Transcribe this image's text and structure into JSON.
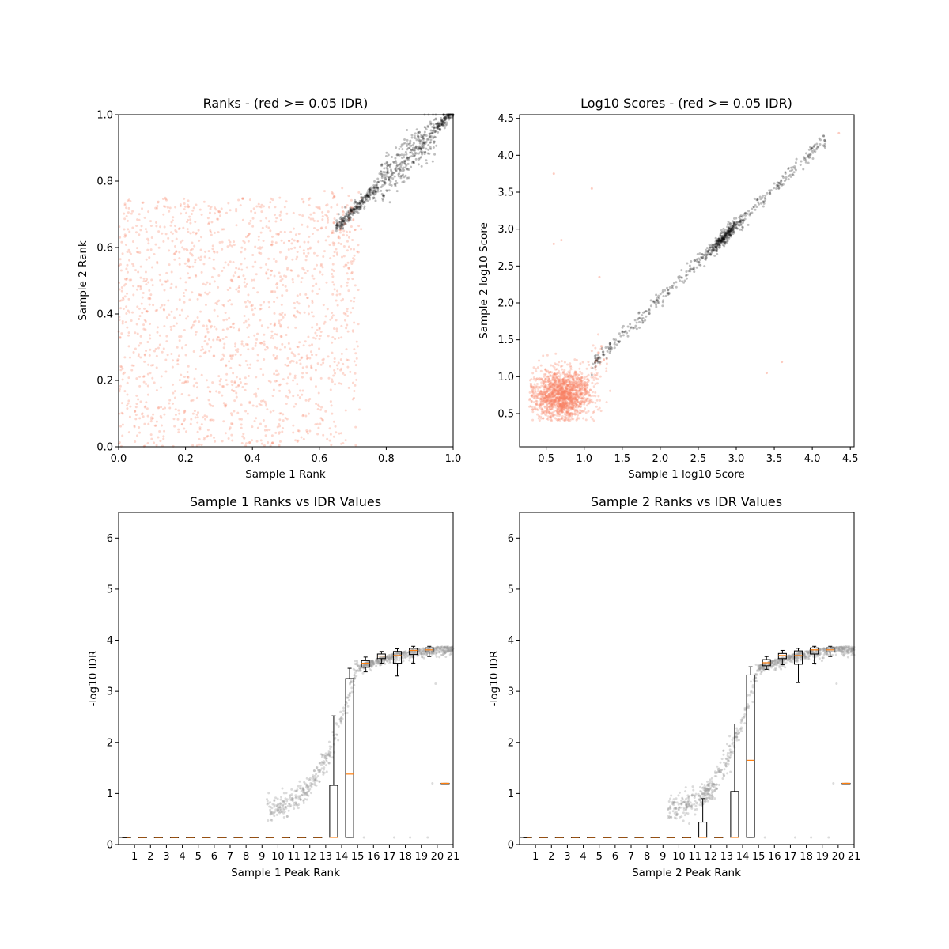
{
  "chart_data": [
    {
      "type": "scatter",
      "title": "Ranks - (red >= 0.05 IDR)",
      "xlabel": "Sample 1 Rank",
      "ylabel": "Sample 2 Rank",
      "xlim": [
        0.0,
        1.0
      ],
      "ylim": [
        0.0,
        1.0
      ],
      "xticks": [
        "0.0",
        "0.2",
        "0.4",
        "0.6",
        "0.8",
        "1.0"
      ],
      "yticks": [
        "0.0",
        "0.2",
        "0.4",
        "0.6",
        "0.8",
        "1.0"
      ],
      "grid": false,
      "point_groups": [
        {
          "color": "#fa8064",
          "description": "low reproducibility (IDR >= 0.05)",
          "distribution": "uniform scatter over [0,0.72] x [0,0.75]",
          "approx_count": 1600
        },
        {
          "color": "#000000",
          "description": "reproducible peaks",
          "distribution": "diagonal band from (0.65,0.66) to (1.0,1.0)",
          "approx_count": 700
        }
      ]
    },
    {
      "type": "scatter",
      "title": "Log10 Scores - (red >= 0.05 IDR)",
      "xlabel": "Sample 1 log10 Score",
      "ylabel": "Sample 2 log10 Score",
      "xlim": [
        0.15,
        4.55
      ],
      "ylim": [
        0.05,
        4.55
      ],
      "xticks": [
        "0.5",
        "1.0",
        "1.5",
        "2.0",
        "2.5",
        "3.0",
        "3.5",
        "4.0",
        "4.5"
      ],
      "yticks": [
        "0.5",
        "1.0",
        "1.5",
        "2.0",
        "2.5",
        "3.0",
        "3.5",
        "4.0",
        "4.5"
      ],
      "grid": false,
      "point_groups": [
        {
          "color": "#fa8064",
          "description": "low reproducibility cluster",
          "center": [
            0.7,
            0.75
          ],
          "approx_count": 1500
        },
        {
          "color": "#000000",
          "description": "reproducible peaks along diagonal",
          "x_range": [
            1.1,
            4.2
          ],
          "dense_center": [
            2.85,
            2.9
          ],
          "approx_count": 650
        }
      ]
    },
    {
      "type": "box",
      "title": "Sample 1 Ranks vs IDR Values",
      "xlabel": "Sample 1 Peak Rank",
      "ylabel": "-log10 IDR",
      "ylim": [
        0,
        6.5
      ],
      "yticks": [
        "0",
        "1",
        "2",
        "3",
        "4",
        "5",
        "6"
      ],
      "categories": [
        "1",
        "2",
        "3",
        "4",
        "5",
        "6",
        "7",
        "8",
        "9",
        "10",
        "11",
        "12",
        "13",
        "14",
        "15",
        "16",
        "17",
        "18",
        "19",
        "20",
        "21"
      ],
      "boxes": [
        {
          "whislo": 0.14,
          "q1": 0.14,
          "med": 0.14,
          "q3": 0.14,
          "whishi": 0.14
        },
        {
          "whislo": 0.14,
          "q1": 0.14,
          "med": 0.14,
          "q3": 0.14,
          "whishi": 0.14
        },
        {
          "whislo": 0.14,
          "q1": 0.14,
          "med": 0.14,
          "q3": 0.14,
          "whishi": 0.14
        },
        {
          "whislo": 0.14,
          "q1": 0.14,
          "med": 0.14,
          "q3": 0.14,
          "whishi": 0.14
        },
        {
          "whislo": 0.14,
          "q1": 0.14,
          "med": 0.14,
          "q3": 0.14,
          "whishi": 0.14
        },
        {
          "whislo": 0.14,
          "q1": 0.14,
          "med": 0.14,
          "q3": 0.14,
          "whishi": 0.14
        },
        {
          "whislo": 0.14,
          "q1": 0.14,
          "med": 0.14,
          "q3": 0.14,
          "whishi": 0.14
        },
        {
          "whislo": 0.14,
          "q1": 0.14,
          "med": 0.14,
          "q3": 0.14,
          "whishi": 0.14
        },
        {
          "whislo": 0.14,
          "q1": 0.14,
          "med": 0.14,
          "q3": 0.14,
          "whishi": 0.14
        },
        {
          "whislo": 0.14,
          "q1": 0.14,
          "med": 0.14,
          "q3": 0.14,
          "whishi": 0.14
        },
        {
          "whislo": 0.14,
          "q1": 0.14,
          "med": 0.14,
          "q3": 0.14,
          "whishi": 0.14
        },
        {
          "whislo": 0.14,
          "q1": 0.14,
          "med": 0.14,
          "q3": 0.14,
          "whishi": 0.14
        },
        {
          "whislo": 0.14,
          "q1": 0.14,
          "med": 0.14,
          "q3": 0.14,
          "whishi": 0.14
        },
        {
          "whislo": 0.14,
          "q1": 0.14,
          "med": 0.14,
          "q3": 1.16,
          "whishi": 2.52
        },
        {
          "whislo": 0.14,
          "q1": 0.14,
          "med": 1.38,
          "q3": 3.25,
          "whishi": 3.45
        },
        {
          "whislo": 3.38,
          "q1": 3.47,
          "med": 3.55,
          "q3": 3.6,
          "whishi": 3.67
        },
        {
          "whislo": 3.55,
          "q1": 3.64,
          "med": 3.69,
          "q3": 3.73,
          "whishi": 3.78
        },
        {
          "whislo": 3.3,
          "q1": 3.55,
          "med": 3.7,
          "q3": 3.78,
          "whishi": 3.83
        },
        {
          "whislo": 3.55,
          "q1": 3.72,
          "med": 3.8,
          "q3": 3.84,
          "whishi": 3.88
        },
        {
          "whislo": 3.68,
          "q1": 3.77,
          "med": 3.81,
          "q3": 3.85,
          "whishi": 3.88
        },
        {
          "whislo": 1.2,
          "q1": 1.2,
          "med": 1.2,
          "q3": 1.2,
          "whishi": 1.2
        }
      ]
    },
    {
      "type": "box",
      "title": "Sample 2 Ranks vs IDR Values",
      "xlabel": "Sample 2 Peak Rank",
      "ylabel": "-log10 IDR",
      "ylim": [
        0,
        6.5
      ],
      "yticks": [
        "0",
        "1",
        "2",
        "3",
        "4",
        "5",
        "6"
      ],
      "categories": [
        "1",
        "2",
        "3",
        "4",
        "5",
        "6",
        "7",
        "8",
        "9",
        "10",
        "11",
        "12",
        "13",
        "14",
        "15",
        "16",
        "17",
        "18",
        "19",
        "20",
        "21"
      ],
      "boxes": [
        {
          "whislo": 0.14,
          "q1": 0.14,
          "med": 0.14,
          "q3": 0.14,
          "whishi": 0.14
        },
        {
          "whislo": 0.14,
          "q1": 0.14,
          "med": 0.14,
          "q3": 0.14,
          "whishi": 0.14
        },
        {
          "whislo": 0.14,
          "q1": 0.14,
          "med": 0.14,
          "q3": 0.14,
          "whishi": 0.14
        },
        {
          "whislo": 0.14,
          "q1": 0.14,
          "med": 0.14,
          "q3": 0.14,
          "whishi": 0.14
        },
        {
          "whislo": 0.14,
          "q1": 0.14,
          "med": 0.14,
          "q3": 0.14,
          "whishi": 0.14
        },
        {
          "whislo": 0.14,
          "q1": 0.14,
          "med": 0.14,
          "q3": 0.14,
          "whishi": 0.14
        },
        {
          "whislo": 0.14,
          "q1": 0.14,
          "med": 0.14,
          "q3": 0.14,
          "whishi": 0.14
        },
        {
          "whislo": 0.14,
          "q1": 0.14,
          "med": 0.14,
          "q3": 0.14,
          "whishi": 0.14
        },
        {
          "whislo": 0.14,
          "q1": 0.14,
          "med": 0.14,
          "q3": 0.14,
          "whishi": 0.14
        },
        {
          "whislo": 0.14,
          "q1": 0.14,
          "med": 0.14,
          "q3": 0.14,
          "whishi": 0.14
        },
        {
          "whislo": 0.14,
          "q1": 0.14,
          "med": 0.14,
          "q3": 0.14,
          "whishi": 0.14
        },
        {
          "whislo": 0.14,
          "q1": 0.14,
          "med": 0.14,
          "q3": 0.44,
          "whishi": 0.9
        },
        {
          "whislo": 0.14,
          "q1": 0.14,
          "med": 0.14,
          "q3": 0.14,
          "whishi": 0.14
        },
        {
          "whislo": 0.14,
          "q1": 0.14,
          "med": 0.14,
          "q3": 1.04,
          "whishi": 2.36
        },
        {
          "whislo": 0.14,
          "q1": 0.14,
          "med": 1.65,
          "q3": 3.32,
          "whishi": 3.48
        },
        {
          "whislo": 3.43,
          "q1": 3.5,
          "med": 3.56,
          "q3": 3.62,
          "whishi": 3.68
        },
        {
          "whislo": 3.52,
          "q1": 3.64,
          "med": 3.7,
          "q3": 3.74,
          "whishi": 3.8
        },
        {
          "whislo": 3.17,
          "q1": 3.53,
          "med": 3.7,
          "q3": 3.79,
          "whishi": 3.84
        },
        {
          "whislo": 3.55,
          "q1": 3.73,
          "med": 3.81,
          "q3": 3.85,
          "whishi": 3.88
        },
        {
          "whislo": 3.68,
          "q1": 3.77,
          "med": 3.81,
          "q3": 3.85,
          "whishi": 3.88
        },
        {
          "whislo": 1.2,
          "q1": 1.2,
          "med": 1.2,
          "q3": 1.2,
          "whishi": 1.2
        }
      ]
    }
  ],
  "colors": {
    "low_reproducibility": "#fa8064",
    "reproducible": "#000000",
    "median_line": "#ff7f0e",
    "background_points": "#999999"
  }
}
